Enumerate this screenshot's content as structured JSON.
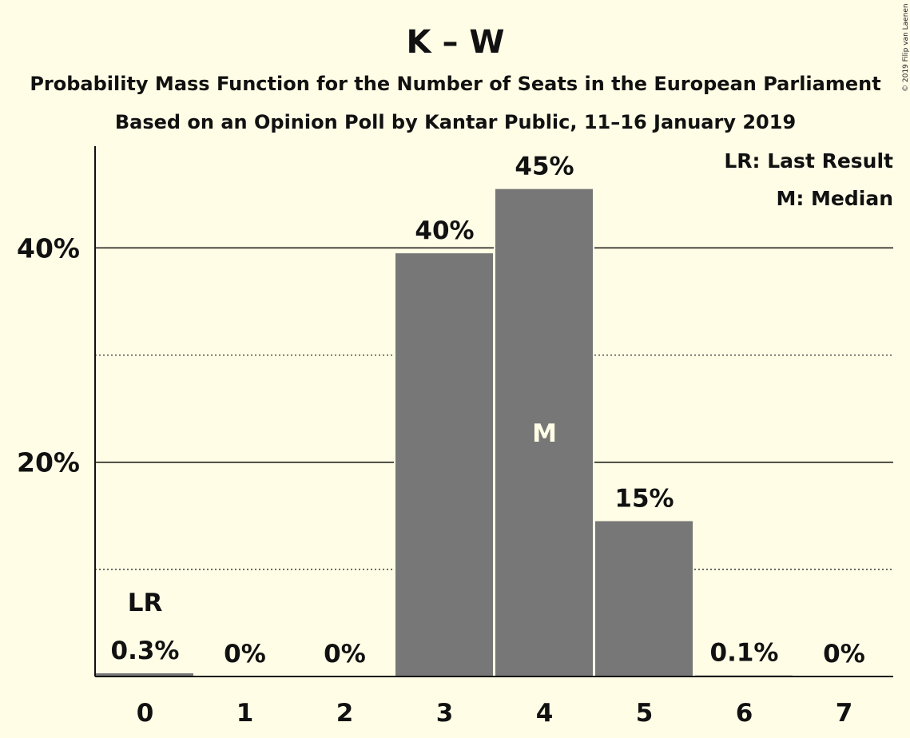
{
  "chart_data": {
    "type": "bar",
    "title": "K – W",
    "subtitle_lines": [
      "Probability Mass Function for the Number of Seats in the European Parliament",
      "Based on an Opinion Poll by Kantar Public, 11–16 January 2019"
    ],
    "copyright": "© 2019 Filip van Laenen",
    "categories": [
      "0",
      "1",
      "2",
      "3",
      "4",
      "5",
      "6",
      "7"
    ],
    "values": [
      0.3,
      0,
      0,
      39.5,
      45.5,
      14.5,
      0.1,
      0
    ],
    "value_labels": [
      "0.3%",
      "0%",
      "0%",
      "40%",
      "45%",
      "15%",
      "0.1%",
      "0%"
    ],
    "ylim": [
      0,
      49.5
    ],
    "yticks": [
      {
        "value": 20,
        "label": "20%"
      },
      {
        "value": 40,
        "label": "40%"
      }
    ],
    "minor_gridlines": [
      10,
      30
    ],
    "last_result": {
      "category": "0",
      "label": "LR"
    },
    "median": {
      "category": "4",
      "label": "M"
    },
    "legend": [
      "LR: Last Result",
      "M: Median"
    ],
    "legend_position": "top-right",
    "colors": {
      "background": "#FFFDE6",
      "bar": "#777777",
      "text": "#111111"
    }
  }
}
